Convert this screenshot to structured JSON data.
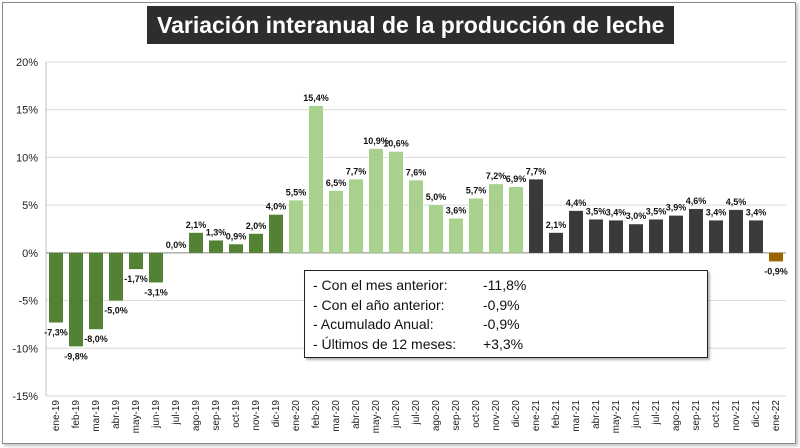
{
  "chart_data": {
    "type": "bar",
    "title": "Variación interanual de la producción de leche",
    "categories": [
      "ene-19",
      "feb-19",
      "mar-19",
      "abr-19",
      "may-19",
      "jun-19",
      "jul-19",
      "ago-19",
      "sep-19",
      "oct-19",
      "nov-19",
      "dic-19",
      "ene-20",
      "feb-20",
      "mar-20",
      "abr-20",
      "may-20",
      "jun-20",
      "jul-20",
      "ago-20",
      "sep-20",
      "oct-20",
      "nov-20",
      "dic-20",
      "ene-21",
      "feb-21",
      "mar-21",
      "abr-21",
      "may-21",
      "jun-21",
      "jul-21",
      "ago-21",
      "sep-21",
      "oct-21",
      "nov-21",
      "dic-21",
      "ene-22"
    ],
    "values": [
      -7.3,
      -9.8,
      -8.0,
      -5.0,
      -1.7,
      -3.1,
      0.0,
      2.1,
      1.3,
      0.9,
      2.0,
      4.0,
      5.5,
      15.4,
      6.5,
      7.7,
      10.9,
      10.6,
      7.6,
      5.0,
      3.6,
      5.7,
      7.2,
      6.9,
      7.7,
      2.1,
      4.4,
      3.5,
      3.4,
      3.0,
      3.5,
      3.9,
      4.6,
      3.4,
      4.5,
      3.4,
      -0.9
    ],
    "data_labels": [
      "-7,3%",
      "-9,8%",
      "-8,0%",
      "-5,0%",
      "-1,7%",
      "-3,1%",
      "0,0%",
      "2,1%",
      "1,3%",
      "0,9%",
      "2,0%",
      "4,0%",
      "5,5%",
      "15,4%",
      "6,5%",
      "7,7%",
      "10,9%",
      "10,6%",
      "7,6%",
      "5,0%",
      "3,6%",
      "5,7%",
      "7,2%",
      "6,9%",
      "7,7%",
      "2,1%",
      "4,4%",
      "3,5%",
      "3,4%",
      "3,0%",
      "3,5%",
      "3,9%",
      "4,6%",
      "3,4%",
      "4,5%",
      "3,4%",
      "-0,9%"
    ],
    "bar_colors": [
      "#548235",
      "#548235",
      "#548235",
      "#548235",
      "#548235",
      "#548235",
      "#548235",
      "#548235",
      "#548235",
      "#548235",
      "#548235",
      "#548235",
      "#a9d18e",
      "#a9d18e",
      "#a9d18e",
      "#a9d18e",
      "#a9d18e",
      "#a9d18e",
      "#a9d18e",
      "#a9d18e",
      "#a9d18e",
      "#a9d18e",
      "#a9d18e",
      "#a9d18e",
      "#3a3a3a",
      "#3a3a3a",
      "#3a3a3a",
      "#3a3a3a",
      "#3a3a3a",
      "#3a3a3a",
      "#3a3a3a",
      "#3a3a3a",
      "#3a3a3a",
      "#3a3a3a",
      "#3a3a3a",
      "#3a3a3a",
      "#9c6500"
    ],
    "ylim": [
      -15,
      20
    ],
    "yticks": [
      -15,
      -10,
      -5,
      0,
      5,
      10,
      15,
      20
    ],
    "ytick_labels": [
      "-15%",
      "-10%",
      "-5%",
      "0%",
      "5%",
      "10%",
      "15%",
      "20%"
    ],
    "grid": true,
    "xlabel": "",
    "ylabel": ""
  },
  "summary": [
    {
      "label": "- Con el mes anterior:",
      "value": "-11,8%"
    },
    {
      "label": "- Con el año anterior:",
      "value": "-0,9%"
    },
    {
      "label": "- Acumulado Anual:",
      "value": "-0,9%"
    },
    {
      "label": "- Últimos de 12 meses:",
      "value": "+3,3%"
    }
  ]
}
